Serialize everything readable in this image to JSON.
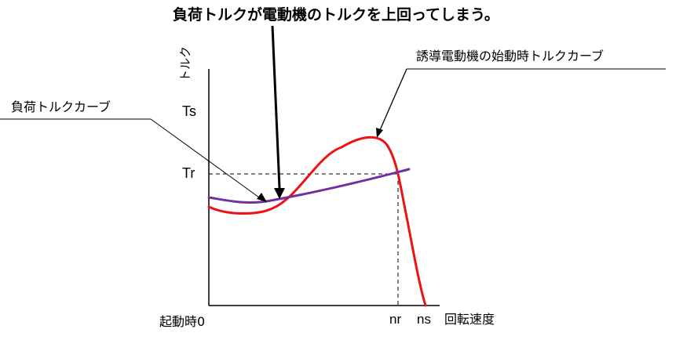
{
  "title": "負荷トルクが電動機のトルクを上回ってしまう。",
  "axes": {
    "y_label": "トルク",
    "x_label": "回転速度",
    "origin_label": "起動時0",
    "y_ticks": {
      "ts": "Ts",
      "tr": "Tr"
    },
    "x_ticks": {
      "nr": "nr",
      "ns": "ns"
    }
  },
  "annotations": {
    "load_curve": "負荷トルクカーブ",
    "motor_curve": "誘導電動機の始動時トルクカーブ"
  },
  "colors": {
    "motor_curve": "#ee1111",
    "load_curve": "#7030a0",
    "axes": "#000000"
  }
}
